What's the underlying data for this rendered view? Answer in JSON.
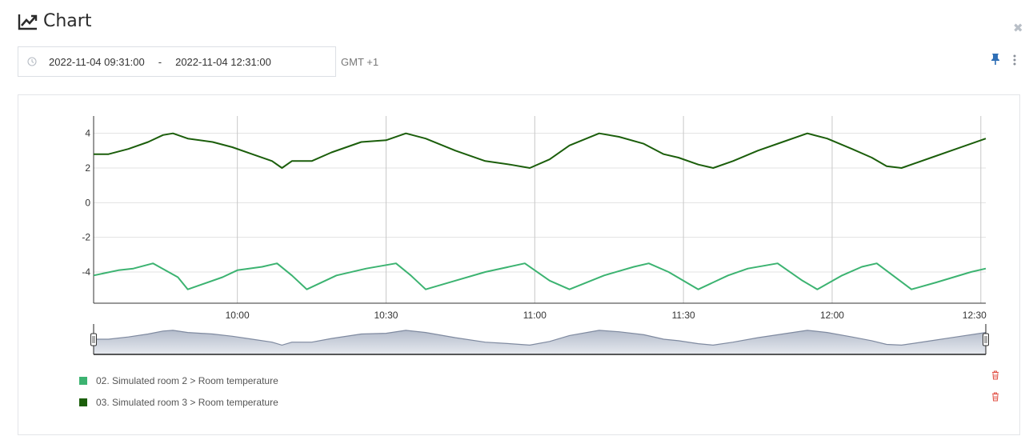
{
  "header": {
    "title": "Chart",
    "title_icon": "line-chart-icon",
    "close_icon": "close-icon"
  },
  "time_range": {
    "start": "2022-11-04 09:31:00",
    "separator": "-",
    "end": "2022-11-04 12:31:00",
    "timezone": "GMT +1"
  },
  "toolbar": {
    "pin_icon": "pin-icon",
    "menu_icon": "kebab-menu-icon"
  },
  "chart_data": {
    "type": "line",
    "title": "",
    "xlabel": "",
    "ylabel": "",
    "x_ticks": [
      "10:00",
      "10:30",
      "11:00",
      "11:30",
      "12:00",
      "12:30"
    ],
    "y_ticks": [
      "4",
      "2",
      "0",
      "-2",
      "-4"
    ],
    "ylim": [
      -5.8,
      5.0
    ],
    "grid": true,
    "navigator": true,
    "series": [
      {
        "name": "02. Simulated room 2 > Room temperature",
        "color": "#3cb371",
        "points": [
          [
            "09:31",
            -4.2
          ],
          [
            "09:36",
            -3.9
          ],
          [
            "09:39",
            -3.8
          ],
          [
            "09:43",
            -3.5
          ],
          [
            "09:48",
            -4.3
          ],
          [
            "09:50",
            -5.0
          ],
          [
            "09:57",
            -4.3
          ],
          [
            "10:00",
            -3.9
          ],
          [
            "10:05",
            -3.7
          ],
          [
            "10:08",
            -3.5
          ],
          [
            "10:11",
            -4.2
          ],
          [
            "10:14",
            -5.0
          ],
          [
            "10:20",
            -4.2
          ],
          [
            "10:26",
            -3.8
          ],
          [
            "10:32",
            -3.5
          ],
          [
            "10:35",
            -4.2
          ],
          [
            "10:38",
            -5.0
          ],
          [
            "10:44",
            -4.5
          ],
          [
            "10:50",
            -4.0
          ],
          [
            "10:58",
            -3.5
          ],
          [
            "11:03",
            -4.5
          ],
          [
            "11:07",
            -5.0
          ],
          [
            "11:14",
            -4.2
          ],
          [
            "11:20",
            -3.7
          ],
          [
            "11:23",
            -3.5
          ],
          [
            "11:27",
            -4.0
          ],
          [
            "11:33",
            -5.0
          ],
          [
            "11:39",
            -4.2
          ],
          [
            "11:43",
            -3.8
          ],
          [
            "11:49",
            -3.5
          ],
          [
            "11:54",
            -4.5
          ],
          [
            "11:57",
            -5.0
          ],
          [
            "12:02",
            -4.2
          ],
          [
            "12:06",
            -3.7
          ],
          [
            "12:09",
            -3.5
          ],
          [
            "12:16",
            -5.0
          ],
          [
            "12:21",
            -4.6
          ],
          [
            "12:28",
            -4.0
          ],
          [
            "12:31",
            -3.8
          ]
        ]
      },
      {
        "name": "03. Simulated room 3 > Room temperature",
        "color": "#1b5e0b",
        "points": [
          [
            "09:31",
            2.8
          ],
          [
            "09:34",
            2.8
          ],
          [
            "09:38",
            3.1
          ],
          [
            "09:42",
            3.5
          ],
          [
            "09:45",
            3.9
          ],
          [
            "09:47",
            4.0
          ],
          [
            "09:50",
            3.7
          ],
          [
            "09:55",
            3.5
          ],
          [
            "09:59",
            3.2
          ],
          [
            "10:03",
            2.8
          ],
          [
            "10:07",
            2.4
          ],
          [
            "10:09",
            2.0
          ],
          [
            "10:11",
            2.4
          ],
          [
            "10:15",
            2.4
          ],
          [
            "10:19",
            2.9
          ],
          [
            "10:25",
            3.5
          ],
          [
            "10:30",
            3.6
          ],
          [
            "10:34",
            4.0
          ],
          [
            "10:38",
            3.7
          ],
          [
            "10:44",
            3.0
          ],
          [
            "10:50",
            2.4
          ],
          [
            "10:55",
            2.2
          ],
          [
            "10:59",
            2.0
          ],
          [
            "11:03",
            2.5
          ],
          [
            "11:07",
            3.3
          ],
          [
            "11:13",
            4.0
          ],
          [
            "11:17",
            3.8
          ],
          [
            "11:22",
            3.4
          ],
          [
            "11:26",
            2.8
          ],
          [
            "11:29",
            2.6
          ],
          [
            "11:33",
            2.2
          ],
          [
            "11:36",
            2.0
          ],
          [
            "11:40",
            2.4
          ],
          [
            "11:45",
            3.0
          ],
          [
            "11:50",
            3.5
          ],
          [
            "11:55",
            4.0
          ],
          [
            "11:59",
            3.7
          ],
          [
            "12:04",
            3.1
          ],
          [
            "12:08",
            2.6
          ],
          [
            "12:11",
            2.1
          ],
          [
            "12:14",
            2.0
          ],
          [
            "12:20",
            2.6
          ],
          [
            "12:25",
            3.1
          ],
          [
            "12:31",
            3.7
          ]
        ]
      }
    ]
  },
  "legend": [
    {
      "label": "02. Simulated room 2 > Room temperature",
      "color": "#3cb371"
    },
    {
      "label": "03. Simulated room 3 > Room temperature",
      "color": "#1b5e0b"
    }
  ],
  "legend_actions": {
    "remove_icon": "trash-icon"
  }
}
